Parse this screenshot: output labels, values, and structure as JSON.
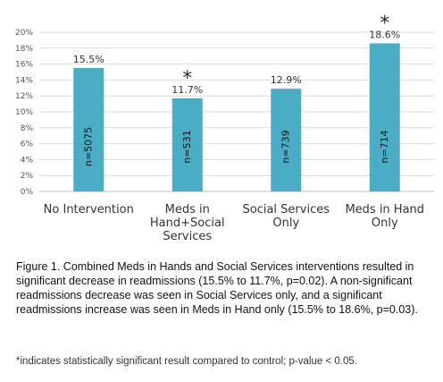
{
  "chart_data": {
    "type": "bar",
    "categories": [
      [
        "No Intervention"
      ],
      [
        "Meds in",
        "Hand+Social",
        "Services"
      ],
      [
        "Social Services",
        "Only"
      ],
      [
        "Meds in Hand",
        "Only"
      ]
    ],
    "values": [
      15.5,
      11.7,
      12.9,
      18.6
    ],
    "value_labels": [
      "15.5%",
      "11.7%",
      "12.9%",
      "18.6%"
    ],
    "bar_labels": [
      "n=5075",
      "n=531",
      "n=739",
      "n=714"
    ],
    "significant": [
      false,
      true,
      false,
      true
    ],
    "significance_marker": "*",
    "y_ticks": [
      "0%",
      "2%",
      "4%",
      "6%",
      "8%",
      "10%",
      "12%",
      "14%",
      "16%",
      "18%",
      "20%"
    ],
    "ylim": [
      0,
      20
    ],
    "grid": true,
    "bar_color": "#4BACC6",
    "gridline_color": "#d9d9d9"
  },
  "caption": "Figure 1. Combined Meds in Hands and Social Services interventions resulted in significant decrease in readmissions (15.5% to 11.7%, p=0.02). A non-significant readmissions decrease was seen in Social Services only, and a significant readmissions increase was seen in Meds in Hand only (15.5% to 18.6%, p=0.03).",
  "footnote": "*indicates statistically significant result compared to control; p-value < 0.05."
}
